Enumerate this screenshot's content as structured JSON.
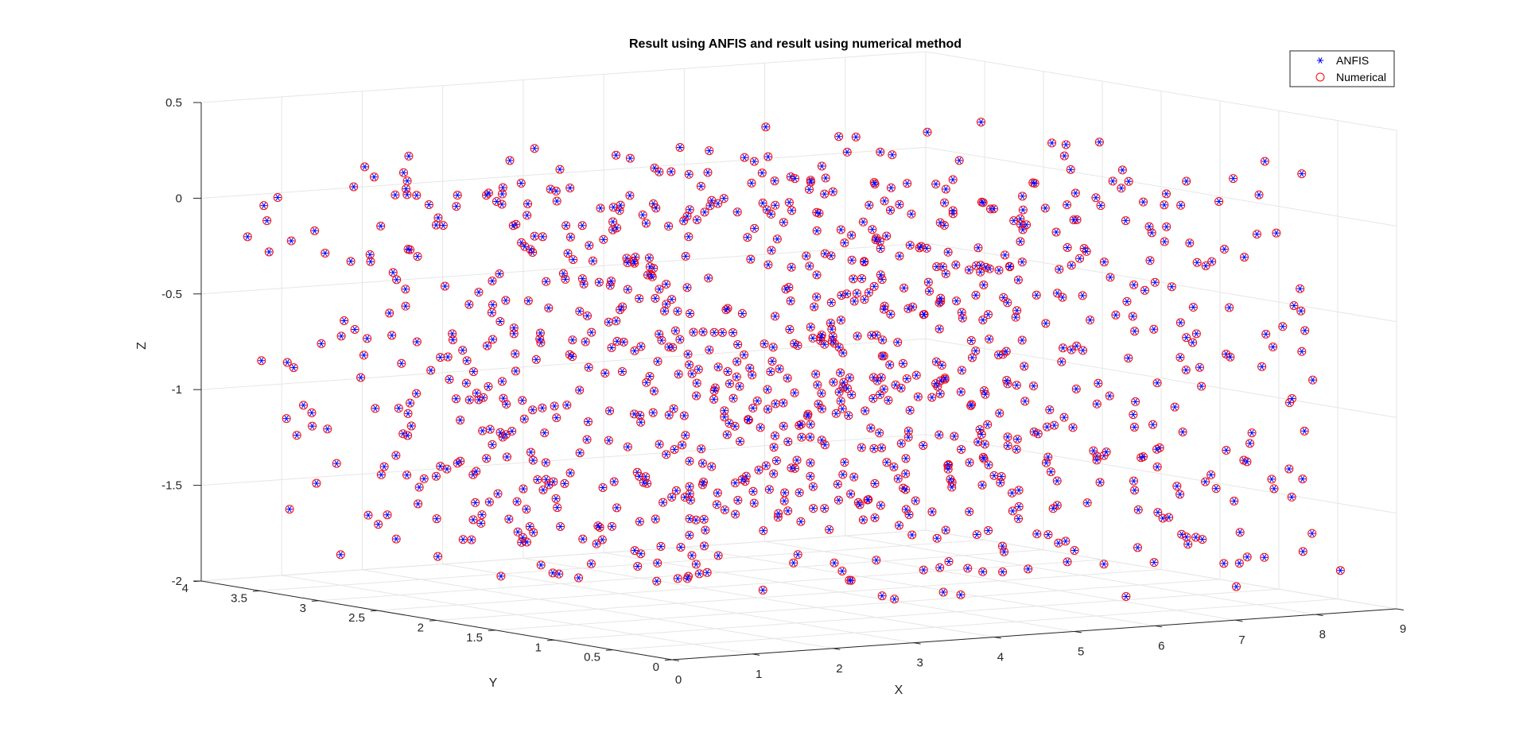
{
  "chart_data": {
    "type": "scatter",
    "title": "Result using ANFIS and result using numerical method",
    "xlabel": "X",
    "ylabel": "Y",
    "zlabel": "Z",
    "xlim": [
      0,
      9
    ],
    "ylim": [
      0,
      4
    ],
    "zlim": [
      -2,
      0.5
    ],
    "xticks": [
      "0",
      "1",
      "2",
      "3",
      "4",
      "5",
      "6",
      "7",
      "8",
      "9"
    ],
    "yticks": [
      "0",
      "0.5",
      "1",
      "1.5",
      "2",
      "2.5",
      "3",
      "3.5",
      "4"
    ],
    "zticks": [
      "-2",
      "-1.5",
      "-1",
      "-0.5",
      "0",
      "0.5"
    ],
    "grid": true,
    "box": "3d",
    "legend_position": "top-right",
    "point_count": 1000,
    "series": [
      {
        "name": "ANFIS",
        "marker": "asterisk",
        "color": "#0000ff"
      },
      {
        "name": "Numerical",
        "marker": "circle",
        "color": "#ff0000"
      }
    ]
  }
}
